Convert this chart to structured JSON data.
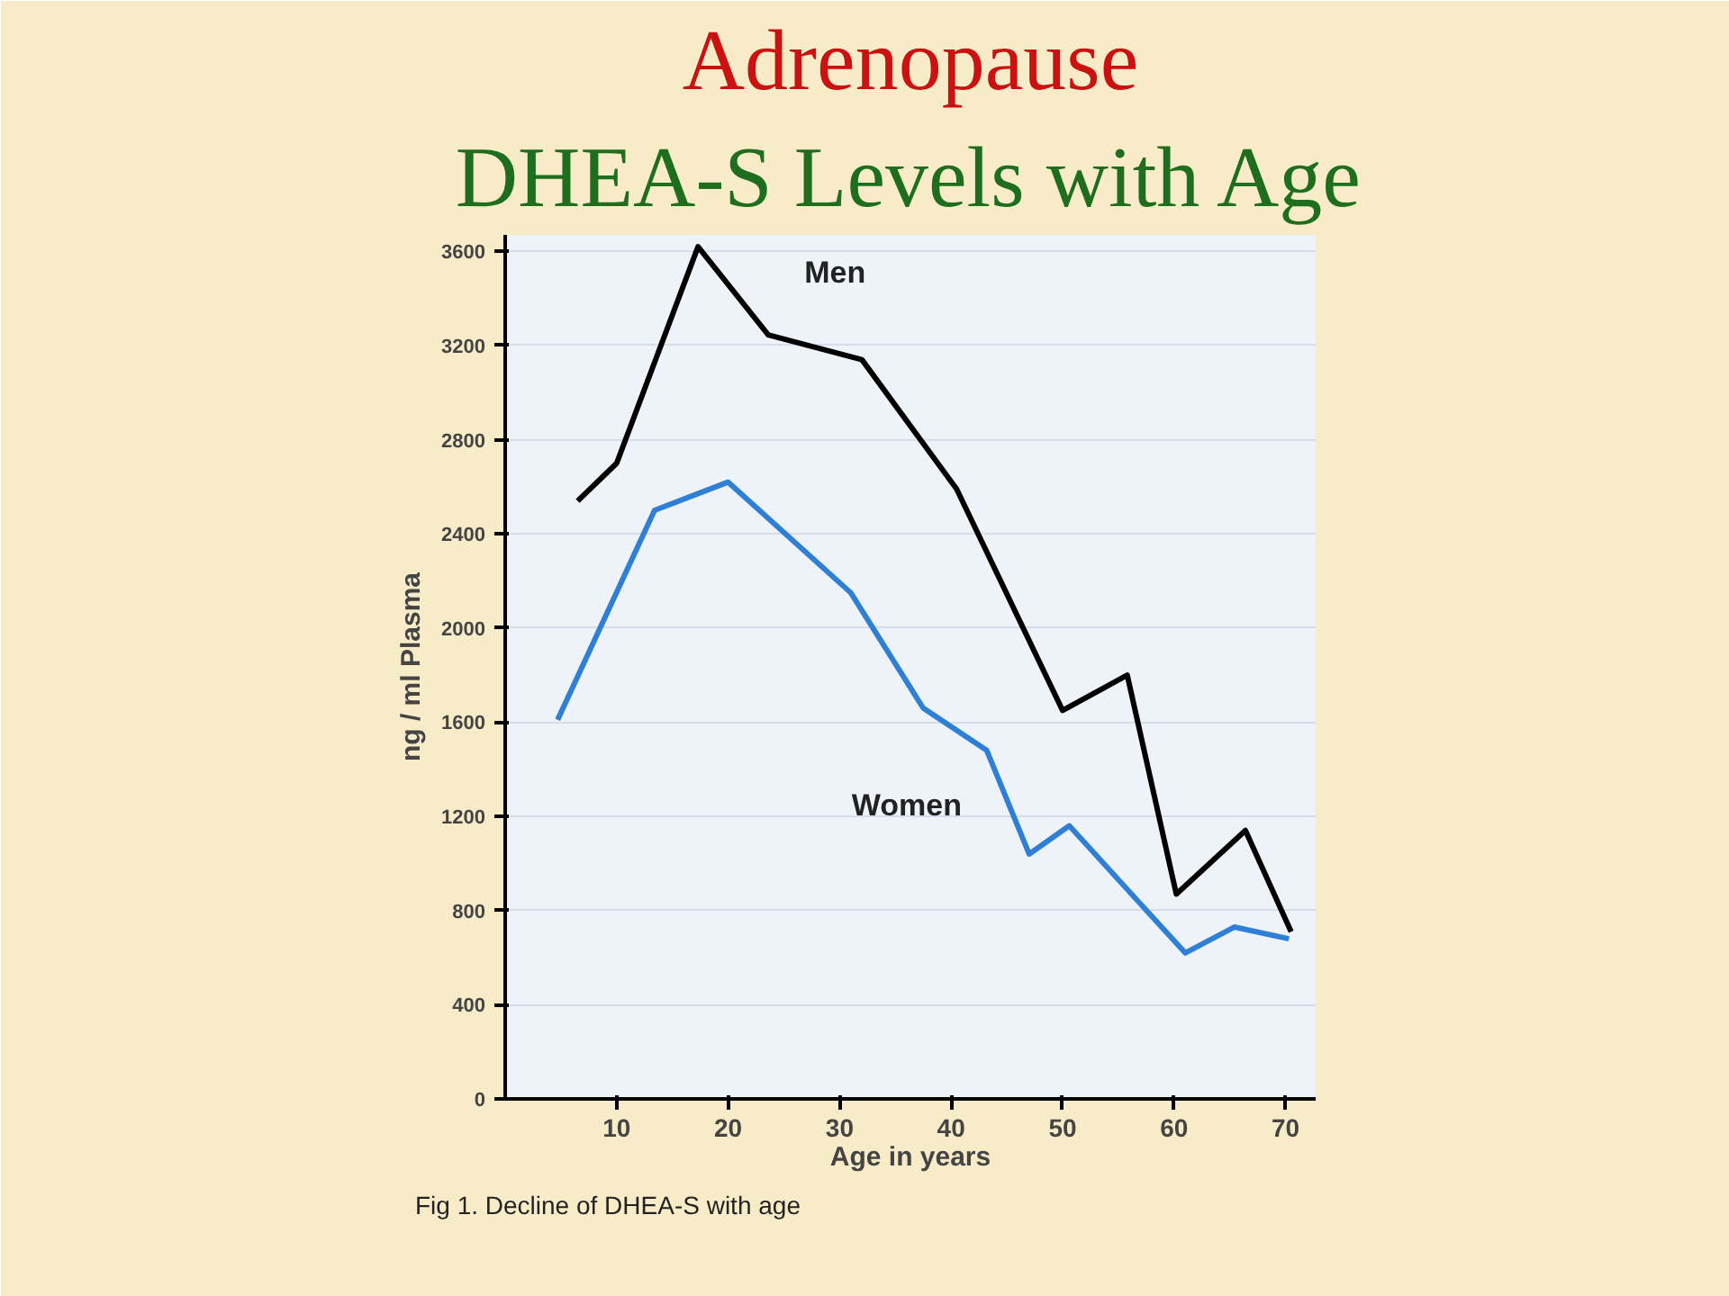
{
  "chart_data": {
    "type": "line",
    "title": "Adrenopause",
    "subtitle": "DHEA-S Levels with Age",
    "xlabel": "Age in years",
    "ylabel": "ng / ml Plasma",
    "annotations": [
      "Fig 1. Decline of DHEA-S with age"
    ],
    "series": [
      {
        "name": "Men",
        "color": "#000000",
        "x": [
          6.5,
          10,
          17.3,
          23.6,
          32,
          40.5,
          50,
          55.8,
          60.2,
          66.4,
          70.5
        ],
        "values": [
          2540,
          2700,
          3620,
          3245,
          3140,
          2590,
          1650,
          1800,
          870,
          1140,
          710
        ]
      },
      {
        "name": "Women",
        "color": "#2f7fd6",
        "x": [
          4.7,
          13.4,
          20,
          31,
          37.5,
          43.2,
          47,
          50.6,
          61,
          65.4,
          70.3
        ],
        "values": [
          1610,
          2500,
          2620,
          2150,
          1660,
          1480,
          1040,
          1160,
          620,
          730,
          680
        ]
      }
    ],
    "xlim": [
      0,
      72.7
    ],
    "ylim": [
      0,
      3670
    ],
    "xticks": [
      10,
      20,
      30,
      40,
      50,
      60,
      70
    ],
    "yticks": [
      0,
      400,
      800,
      1200,
      1600,
      2000,
      2400,
      2800,
      3200,
      3600
    ],
    "grid": "y",
    "marker": "none",
    "line_style": "solid"
  }
}
